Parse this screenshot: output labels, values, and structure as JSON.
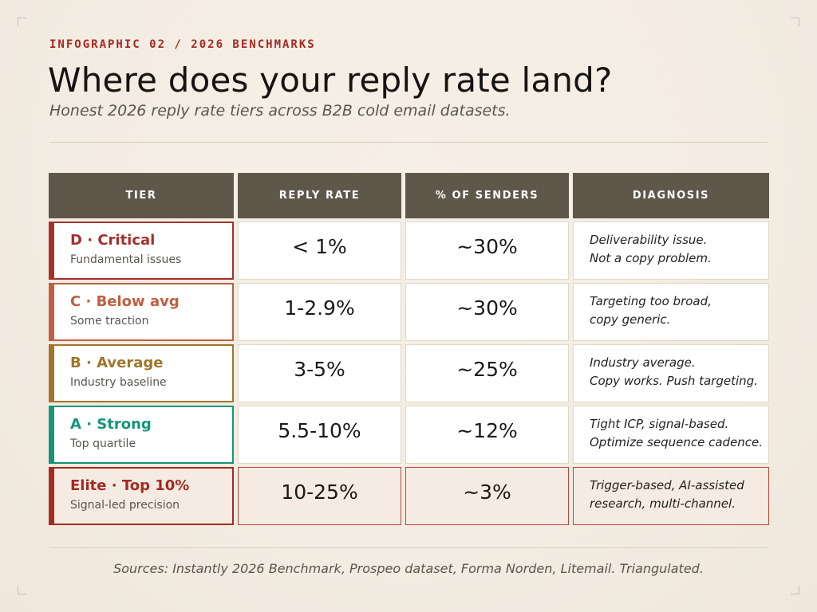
{
  "header": {
    "eyebrow": "INFOGRAPHIC 02 / 2026 BENCHMARKS",
    "title": "Where does your reply rate land?",
    "subtitle": "Honest 2026 reply rate tiers across B2B cold email datasets."
  },
  "table": {
    "headers": [
      "TIER",
      "REPLY RATE",
      "% OF SENDERS",
      "DIAGNOSIS"
    ],
    "rows": [
      {
        "tier": "D · Critical",
        "sub": "Fundamental issues",
        "rate": "< 1%",
        "senders": "~30%",
        "diag1": "Deliverability issue.",
        "diag2": "Not a copy problem.",
        "color": "#a3312a"
      },
      {
        "tier": "C · Below avg",
        "sub": "Some traction",
        "rate": "1-2.9%",
        "senders": "~30%",
        "diag1": "Targeting too broad,",
        "diag2": "copy generic.",
        "color": "#c05f43"
      },
      {
        "tier": "B · Average",
        "sub": "Industry baseline",
        "rate": "3-5%",
        "senders": "~25%",
        "diag1": "Industry average.",
        "diag2": "Copy works. Push targeting.",
        "color": "#a17528"
      },
      {
        "tier": "A · Strong",
        "sub": "Top quartile",
        "rate": "5.5-10%",
        "senders": "~12%",
        "diag1": "Tight ICP, signal-based.",
        "diag2": "Optimize sequence cadence.",
        "color": "#15957a"
      },
      {
        "tier": "Elite · Top 10%",
        "sub": "Signal-led precision",
        "rate": "10-25%",
        "senders": "~3%",
        "diag1": "Trigger-based, AI-assisted",
        "diag2": "research, multi-channel.",
        "color": "#a52a23"
      }
    ]
  },
  "footer": {
    "sources": "Sources: Instantly 2026 Benchmark, Prospeo dataset, Forma Norden, Litemail. Triangulated."
  }
}
